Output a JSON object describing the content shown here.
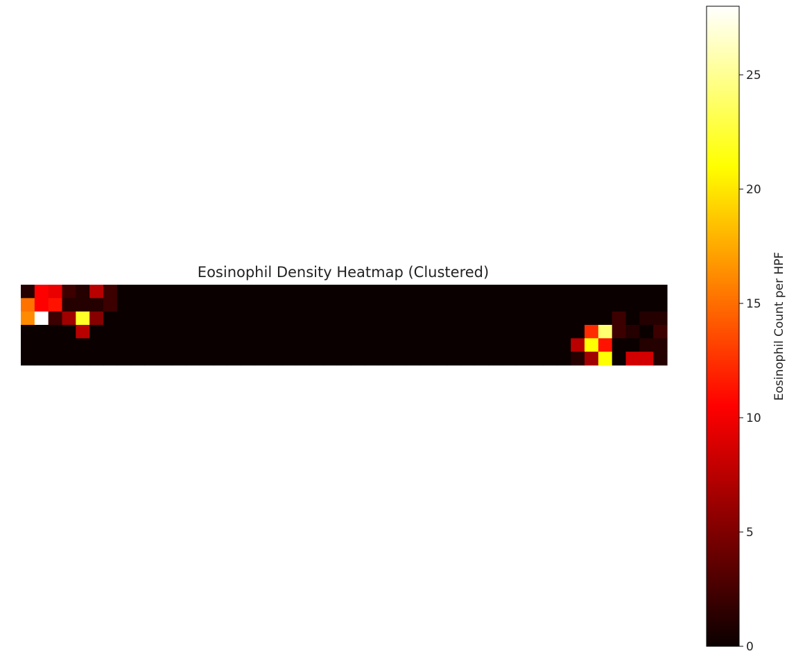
{
  "chart_data": {
    "type": "heatmap",
    "title": "Eosinophil Density Heatmap (Clustered)",
    "xlabel": "",
    "ylabel": "",
    "colormap": "hot",
    "colorbar": {
      "label": "Eosinophil Count per HPF",
      "range": [
        0,
        28
      ],
      "ticks": [
        0,
        5,
        10,
        15,
        20,
        25
      ],
      "tick_labels": [
        "0",
        "5",
        "10",
        "15",
        "20",
        "25"
      ]
    },
    "grid": false,
    "n_rows": 6,
    "n_cols": 47,
    "values": [
      [
        1,
        10,
        9,
        2,
        1,
        7,
        2,
        0,
        0,
        0,
        0,
        0,
        0,
        0,
        0,
        0,
        0,
        0,
        0,
        0,
        0,
        0,
        0,
        0,
        0,
        0,
        0,
        0,
        0,
        0,
        0,
        0,
        0,
        0,
        0,
        0,
        0,
        0,
        0,
        0,
        0,
        0,
        0,
        0,
        0,
        0,
        0
      ],
      [
        15,
        10,
        11,
        1,
        1,
        1,
        2,
        0,
        0,
        0,
        0,
        0,
        0,
        0,
        0,
        0,
        0,
        0,
        0,
        0,
        0,
        0,
        0,
        0,
        0,
        0,
        0,
        0,
        0,
        0,
        0,
        0,
        0,
        0,
        0,
        0,
        0,
        0,
        0,
        0,
        0,
        0,
        0,
        0,
        0,
        0,
        0
      ],
      [
        16,
        28,
        2,
        6,
        22,
        5,
        0,
        0,
        0,
        0,
        0,
        0,
        0,
        0,
        0,
        0,
        0,
        0,
        0,
        0,
        0,
        0,
        0,
        0,
        0,
        0,
        0,
        0,
        0,
        0,
        0,
        0,
        0,
        0,
        0,
        0,
        0,
        0,
        0,
        0,
        0,
        0,
        0,
        2,
        0,
        1,
        1
      ],
      [
        0,
        0,
        0,
        0,
        7,
        0,
        0,
        0,
        0,
        0,
        0,
        0,
        0,
        0,
        0,
        0,
        0,
        0,
        0,
        0,
        0,
        0,
        0,
        0,
        0,
        0,
        0,
        0,
        0,
        0,
        0,
        0,
        0,
        0,
        0,
        0,
        0,
        0,
        0,
        0,
        0,
        12,
        24,
        2,
        1,
        0,
        2
      ],
      [
        0,
        0,
        0,
        0,
        0,
        0,
        0,
        0,
        0,
        0,
        0,
        0,
        0,
        0,
        0,
        0,
        0,
        0,
        0,
        0,
        0,
        0,
        0,
        0,
        0,
        0,
        0,
        0,
        0,
        0,
        0,
        0,
        0,
        0,
        0,
        0,
        0,
        0,
        0,
        0,
        7,
        21,
        11,
        0,
        0,
        1,
        1
      ],
      [
        0,
        0,
        0,
        0,
        0,
        0,
        0,
        0,
        0,
        0,
        0,
        0,
        0,
        0,
        0,
        0,
        0,
        0,
        0,
        0,
        0,
        0,
        0,
        0,
        0,
        0,
        0,
        0,
        0,
        0,
        0,
        0,
        0,
        0,
        0,
        0,
        0,
        0,
        0,
        0,
        1,
        6,
        21,
        0,
        8,
        8,
        1
      ]
    ]
  }
}
